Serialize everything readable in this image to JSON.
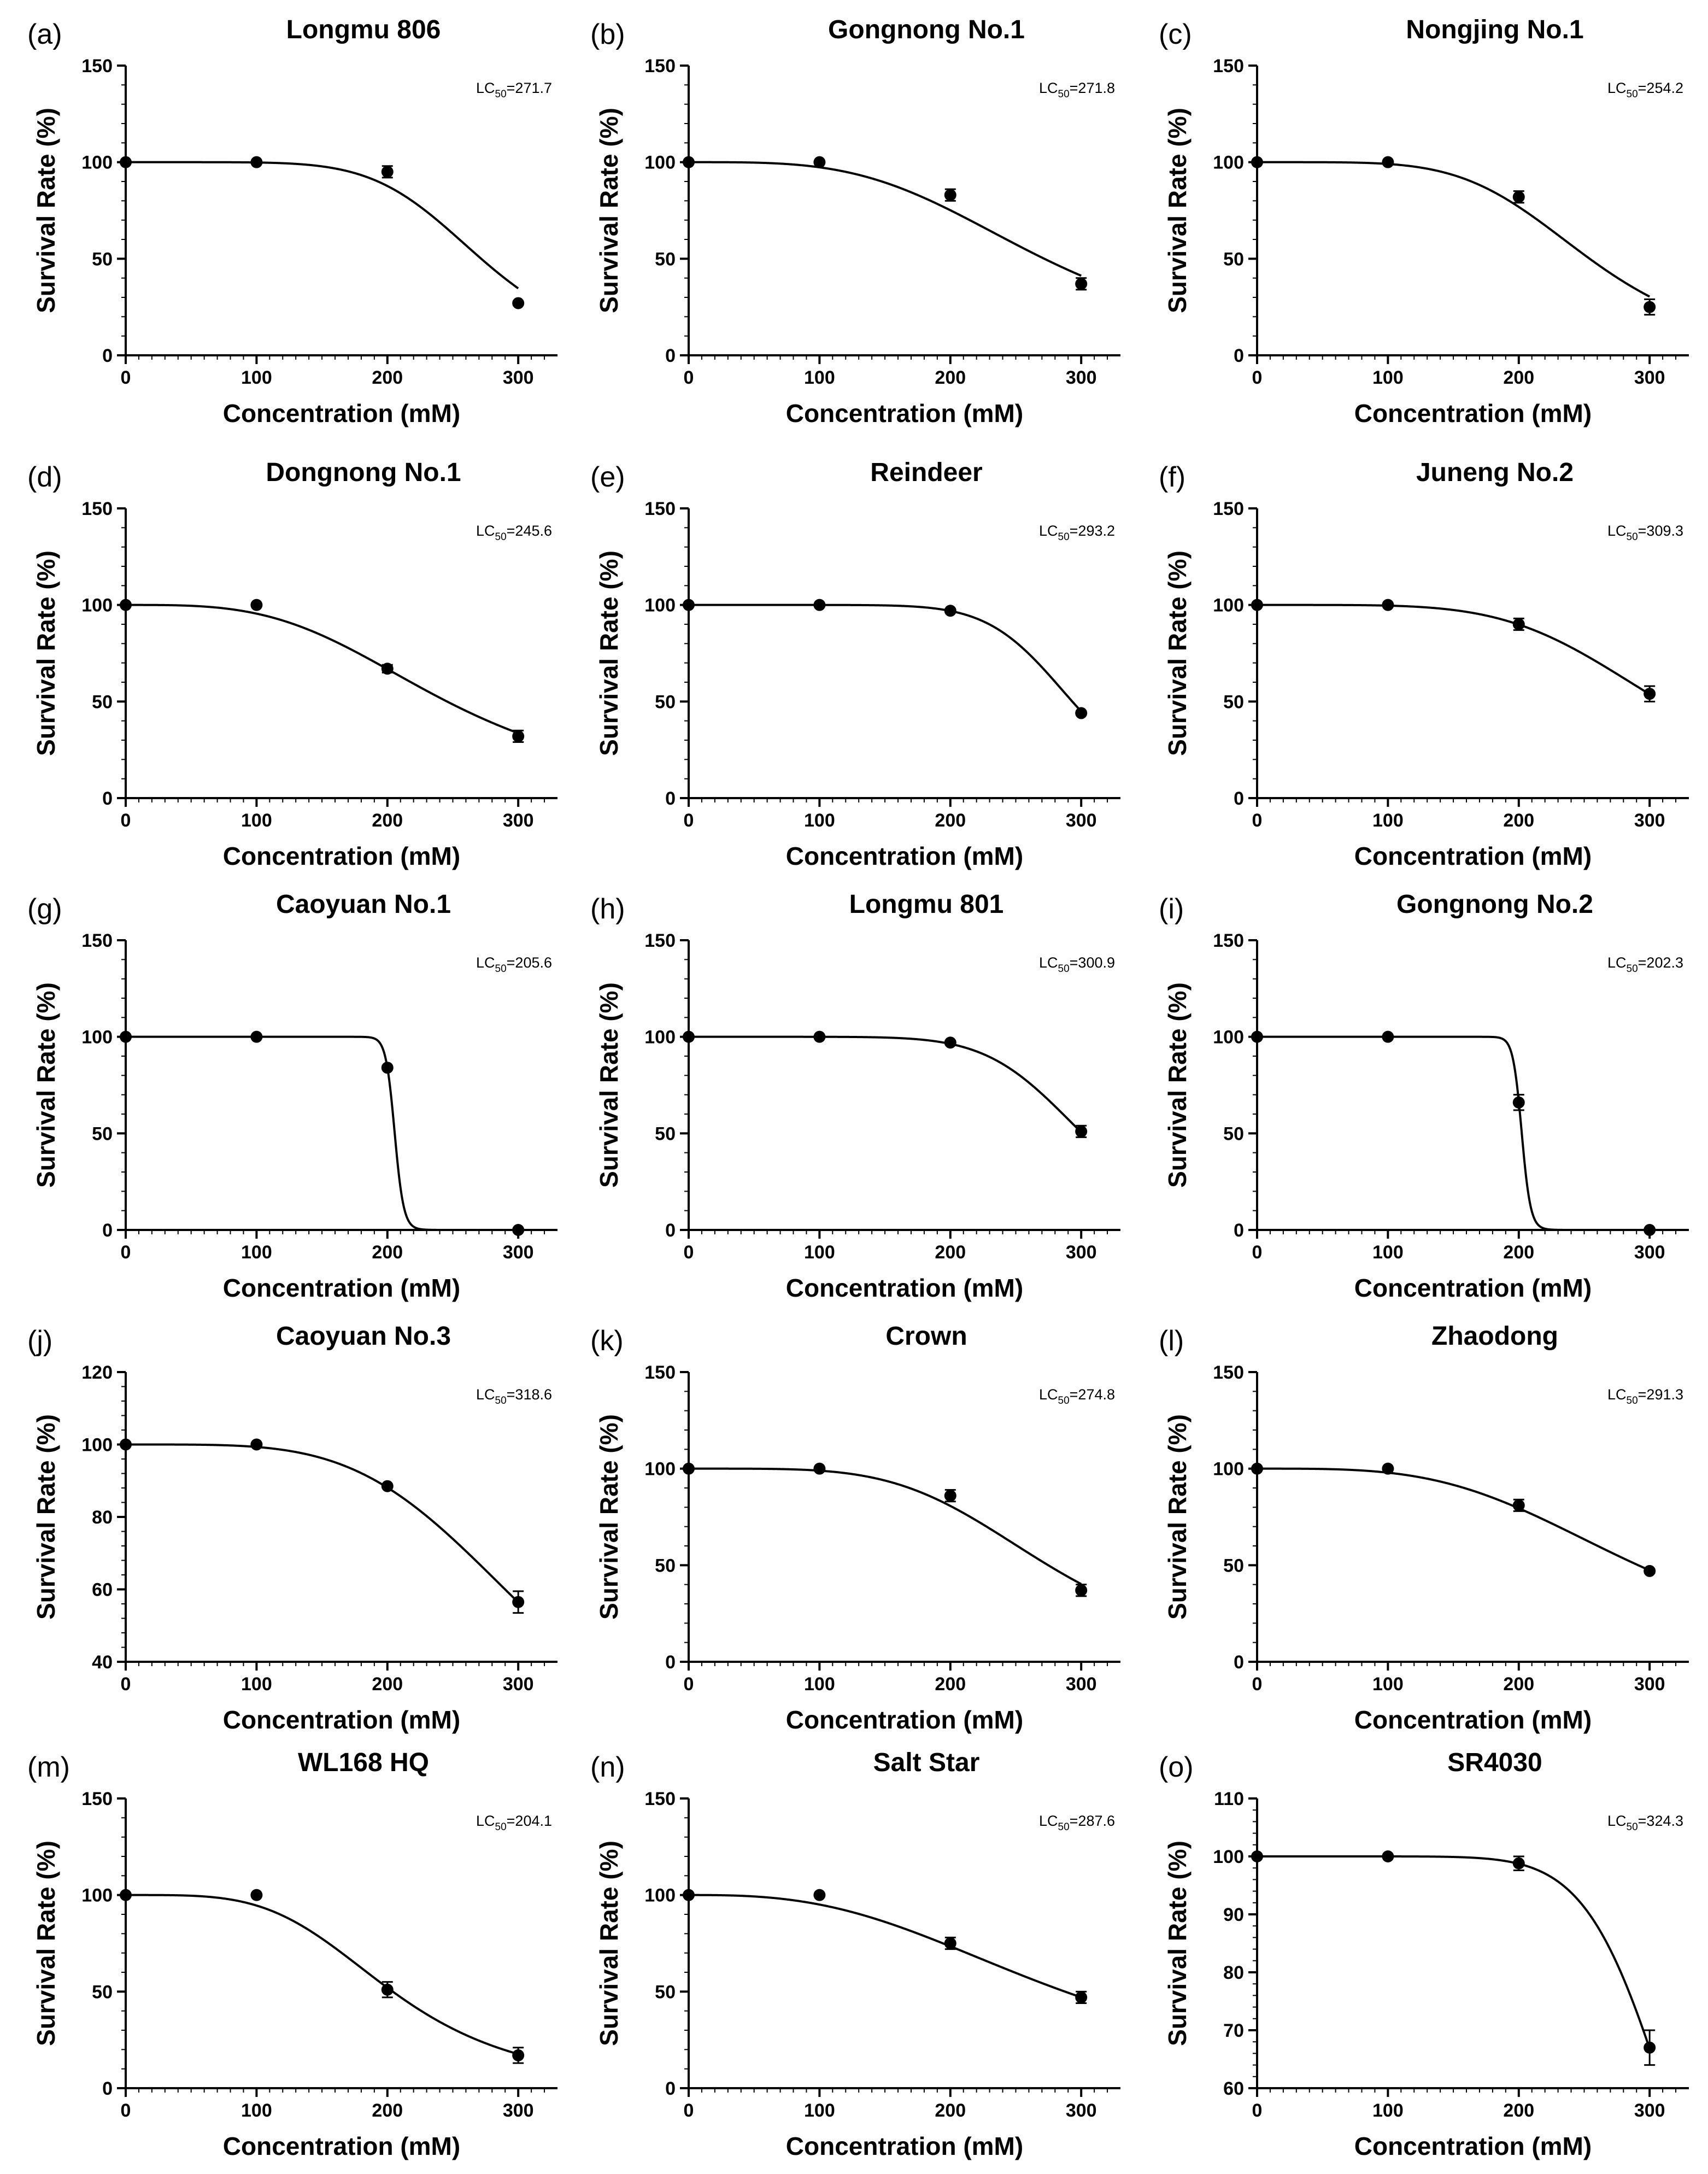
{
  "chart_data": [
    {
      "letter": "(a)",
      "title": "Longmu 806",
      "lc50_prefix": "LC",
      "lc50_sub": "50",
      "lc50_value": "=271.7",
      "lc50": 271.7,
      "type": "scatter",
      "x": [
        0,
        100,
        200,
        300
      ],
      "y": [
        100,
        100,
        95,
        27
      ],
      "err": [
        0,
        0,
        3,
        1
      ],
      "ylim": [
        0,
        150
      ],
      "yticks": [
        0,
        50,
        100,
        150
      ],
      "xticks": [
        0,
        100,
        200,
        300
      ],
      "xlabel": "Concentration (mM)",
      "ylabel": "Survival Rate (%)",
      "hill": 6.4
    },
    {
      "letter": "(b)",
      "title": "Gongnong No.1",
      "lc50_prefix": "LC",
      "lc50_sub": "50",
      "lc50_value": "=271.8",
      "lc50": 271.8,
      "type": "scatter",
      "x": [
        0,
        100,
        200,
        300
      ],
      "y": [
        100,
        100,
        83,
        37
      ],
      "err": [
        0,
        0,
        3,
        3
      ],
      "ylim": [
        0,
        150
      ],
      "yticks": [
        0,
        50,
        100,
        150
      ],
      "xticks": [
        0,
        100,
        200,
        300
      ],
      "xlabel": "Concentration (mM)",
      "ylabel": "Survival Rate (%)",
      "hill": 3.6
    },
    {
      "letter": "(c)",
      "title": "Nongjing No.1",
      "lc50_prefix": "LC",
      "lc50_sub": "50",
      "lc50_value": "=254.2",
      "lc50": 254.2,
      "type": "scatter",
      "x": [
        0,
        100,
        200,
        300
      ],
      "y": [
        100,
        100,
        82,
        25
      ],
      "err": [
        0,
        0,
        3,
        4
      ],
      "ylim": [
        0,
        150
      ],
      "yticks": [
        0,
        50,
        100,
        150
      ],
      "xticks": [
        0,
        100,
        200,
        300
      ],
      "xlabel": "Concentration (mM)",
      "ylabel": "Survival Rate (%)",
      "hill": 5.0
    },
    {
      "letter": "(d)",
      "title": "Dongnong No.1",
      "lc50_prefix": "LC",
      "lc50_sub": "50",
      "lc50_value": "=245.6",
      "lc50": 245.6,
      "type": "scatter",
      "x": [
        0,
        100,
        200,
        300
      ],
      "y": [
        100,
        100,
        67,
        32
      ],
      "err": [
        0,
        0,
        2,
        3
      ],
      "ylim": [
        0,
        150
      ],
      "yticks": [
        0,
        50,
        100,
        150
      ],
      "xticks": [
        0,
        100,
        200,
        300
      ],
      "xlabel": "Concentration (mM)",
      "ylabel": "Survival Rate (%)",
      "hill": 3.4
    },
    {
      "letter": "(e)",
      "title": "Reindeer",
      "lc50_prefix": "LC",
      "lc50_sub": "50",
      "lc50_value": "=293.2",
      "lc50": 293.2,
      "type": "scatter",
      "x": [
        0,
        100,
        200,
        300
      ],
      "y": [
        100,
        100,
        97,
        44
      ],
      "err": [
        0,
        0,
        1,
        1
      ],
      "ylim": [
        0,
        150
      ],
      "yticks": [
        0,
        50,
        100,
        150
      ],
      "xticks": [
        0,
        100,
        200,
        300
      ],
      "xlabel": "Concentration (mM)",
      "ylabel": "Survival Rate (%)",
      "hill": 9.0
    },
    {
      "letter": "(f)",
      "title": "Juneng No.2",
      "lc50_prefix": "LC",
      "lc50_sub": "50",
      "lc50_value": "=309.3",
      "lc50": 309.3,
      "type": "scatter",
      "x": [
        0,
        100,
        200,
        300
      ],
      "y": [
        100,
        100,
        90,
        54
      ],
      "err": [
        0,
        0,
        3,
        4
      ],
      "ylim": [
        0,
        150
      ],
      "yticks": [
        0,
        50,
        100,
        150
      ],
      "xticks": [
        0,
        100,
        200,
        300
      ],
      "xlabel": "Concentration (mM)",
      "ylabel": "Survival Rate (%)",
      "hill": 5.0
    },
    {
      "letter": "(g)",
      "title": "Caoyuan No.1",
      "lc50_prefix": "LC",
      "lc50_sub": "50",
      "lc50_value": "=205.6",
      "lc50": 205.6,
      "type": "scatter",
      "x": [
        0,
        100,
        200,
        300
      ],
      "y": [
        100,
        100,
        84,
        0
      ],
      "err": [
        0,
        0,
        1,
        0
      ],
      "ylim": [
        0,
        150
      ],
      "yticks": [
        0,
        50,
        100,
        150
      ],
      "xticks": [
        0,
        100,
        200,
        300
      ],
      "xlabel": "Concentration (mM)",
      "ylabel": "Survival Rate (%)",
      "hill": 60
    },
    {
      "letter": "(h)",
      "title": "Longmu 801",
      "lc50_prefix": "LC",
      "lc50_sub": "50",
      "lc50_value": "=300.9",
      "lc50": 300.9,
      "type": "scatter",
      "x": [
        0,
        100,
        200,
        300
      ],
      "y": [
        100,
        100,
        97,
        51
      ],
      "err": [
        0,
        0,
        1,
        3
      ],
      "ylim": [
        0,
        150
      ],
      "yticks": [
        0,
        50,
        100,
        150
      ],
      "xticks": [
        0,
        100,
        200,
        300
      ],
      "xlabel": "Concentration (mM)",
      "ylabel": "Survival Rate (%)",
      "hill": 8.0
    },
    {
      "letter": "(i)",
      "title": "Gongnong No.2",
      "lc50_prefix": "LC",
      "lc50_sub": "50",
      "lc50_value": "=202.3",
      "lc50": 202.3,
      "type": "scatter",
      "x": [
        0,
        100,
        200,
        300
      ],
      "y": [
        100,
        100,
        66,
        0
      ],
      "err": [
        0,
        0,
        4,
        0
      ],
      "ylim": [
        0,
        150
      ],
      "yticks": [
        0,
        50,
        100,
        150
      ],
      "xticks": [
        0,
        100,
        200,
        300
      ],
      "xlabel": "Concentration (mM)",
      "ylabel": "Survival Rate (%)",
      "hill": 60
    },
    {
      "letter": "(j)",
      "title": "Caoyuan No.3",
      "lc50_prefix": "LC",
      "lc50_sub": "50",
      "lc50_value": "=318.6",
      "lc50": 318.6,
      "type": "scatter",
      "x": [
        0,
        100,
        200,
        300
      ],
      "y": [
        100,
        100,
        88.5,
        56.5
      ],
      "err": [
        0,
        0,
        0.5,
        3
      ],
      "ylim": [
        40,
        120
      ],
      "yticks": [
        40,
        60,
        80,
        100,
        120
      ],
      "xticks": [
        0,
        100,
        200,
        300
      ],
      "xlabel": "Concentration (mM)",
      "ylabel": "Survival Rate (%)",
      "hill": 4.3
    },
    {
      "letter": "(k)",
      "title": "Crown",
      "lc50_prefix": "LC",
      "lc50_sub": "50",
      "lc50_value": "=274.8",
      "lc50": 274.8,
      "type": "scatter",
      "x": [
        0,
        100,
        200,
        300
      ],
      "y": [
        100,
        100,
        86,
        37
      ],
      "err": [
        0,
        0,
        3,
        3
      ],
      "ylim": [
        0,
        150
      ],
      "yticks": [
        0,
        50,
        100,
        150
      ],
      "xticks": [
        0,
        100,
        200,
        300
      ],
      "xlabel": "Concentration (mM)",
      "ylabel": "Survival Rate (%)",
      "hill": 4.5
    },
    {
      "letter": "(l)",
      "title": "Zhaodong",
      "lc50_prefix": "LC",
      "lc50_sub": "50",
      "lc50_value": "=291.3",
      "lc50": 291.3,
      "type": "scatter",
      "x": [
        0,
        100,
        200,
        300
      ],
      "y": [
        100,
        100,
        81,
        47
      ],
      "err": [
        0,
        0,
        3,
        1
      ],
      "ylim": [
        0,
        150
      ],
      "yticks": [
        0,
        50,
        100,
        150
      ],
      "xticks": [
        0,
        100,
        200,
        300
      ],
      "xlabel": "Concentration (mM)",
      "ylabel": "Survival Rate (%)",
      "hill": 3.6
    },
    {
      "letter": "(m)",
      "title": "WL168 HQ",
      "lc50_prefix": "LC",
      "lc50_sub": "50",
      "lc50_value": "=204.1",
      "lc50": 204.1,
      "type": "scatter",
      "x": [
        0,
        100,
        200,
        300
      ],
      "y": [
        100,
        100,
        51,
        17
      ],
      "err": [
        0,
        0,
        4,
        4
      ],
      "ylim": [
        0,
        150
      ],
      "yticks": [
        0,
        50,
        100,
        150
      ],
      "xticks": [
        0,
        100,
        200,
        300
      ],
      "xlabel": "Concentration (mM)",
      "ylabel": "Survival Rate (%)",
      "hill": 4.0
    },
    {
      "letter": "(n)",
      "title": "Salt Star",
      "lc50_prefix": "LC",
      "lc50_sub": "50",
      "lc50_value": "=287.6",
      "lc50": 287.6,
      "type": "scatter",
      "x": [
        0,
        100,
        200,
        300
      ],
      "y": [
        100,
        100,
        75,
        47
      ],
      "err": [
        0,
        0,
        3,
        3
      ],
      "ylim": [
        0,
        150
      ],
      "yticks": [
        0,
        50,
        100,
        150
      ],
      "xticks": [
        0,
        100,
        200,
        300
      ],
      "xlabel": "Concentration (mM)",
      "ylabel": "Survival Rate (%)",
      "hill": 2.8
    },
    {
      "letter": "(o)",
      "title": "SR4030",
      "lc50_prefix": "LC",
      "lc50_sub": "50",
      "lc50_value": "=324.3",
      "lc50": 324.3,
      "type": "scatter",
      "x": [
        0,
        100,
        200,
        300
      ],
      "y": [
        100,
        100,
        98.8,
        67
      ],
      "err": [
        0,
        0,
        1.2,
        3
      ],
      "ylim": [
        60,
        110
      ],
      "yticks": [
        60,
        70,
        80,
        90,
        100,
        110
      ],
      "xticks": [
        0,
        100,
        200,
        300
      ],
      "xlabel": "Concentration (mM)",
      "ylabel": "Survival Rate (%)",
      "hill": 9.0
    }
  ]
}
